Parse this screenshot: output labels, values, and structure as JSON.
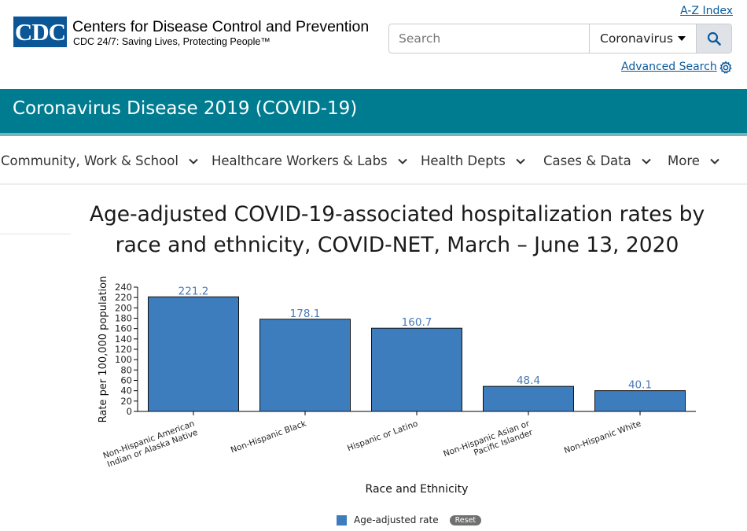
{
  "header": {
    "logo_text": "CDC",
    "org_name": "Centers for Disease Control and Prevention",
    "tagline": "CDC 24/7: Saving Lives, Protecting People™",
    "az_index": "A-Z Index",
    "search": {
      "placeholder": "Search",
      "scope": "Coronavirus"
    },
    "advanced_search": "Advanced Search"
  },
  "banner": {
    "title": "Coronavirus Disease 2019 (COVID-19)",
    "color": "#007c91"
  },
  "nav": {
    "items": [
      {
        "label": "Community, Work & School"
      },
      {
        "label": "Healthcare Workers & Labs"
      },
      {
        "label": "Health Depts"
      },
      {
        "label": "Cases & Data"
      },
      {
        "label": "More"
      }
    ]
  },
  "legend": {
    "label": "Age-adjusted rate",
    "reset": "Reset"
  },
  "chart_data": {
    "type": "bar",
    "title": "Age-adjusted COVID-19-associated hospitalization rates by race and ethnicity, COVID-NET, March – June 13, 2020",
    "xlabel": "Race and Ethnicity",
    "ylabel": "Rate per 100,000 population",
    "ylim": [
      0,
      240
    ],
    "yticks": [
      0,
      20,
      40,
      60,
      80,
      100,
      120,
      140,
      160,
      180,
      200,
      220,
      240
    ],
    "categories": [
      [
        "Non-Hispanic American",
        "Indian or Alaska Native"
      ],
      [
        "Non-Hispanic Black"
      ],
      [
        "Hispanic or Latino"
      ],
      [
        "Non-Hispanic Asian or",
        "Pacific Islander"
      ],
      [
        "Non-Hispanic White"
      ]
    ],
    "values": [
      221.2,
      178.1,
      160.7,
      48.4,
      40.1
    ],
    "value_labels": [
      "221.2",
      "178.1",
      "160.7",
      "48.4",
      "40.1"
    ],
    "series": [
      {
        "name": "Age-adjusted rate",
        "values": [
          221.2,
          178.1,
          160.7,
          48.4,
          40.1
        ]
      }
    ],
    "bar_color": "#3d7dbd",
    "label_color": "#4a7ab5",
    "grid": false,
    "legend_position": "bottom-center"
  }
}
